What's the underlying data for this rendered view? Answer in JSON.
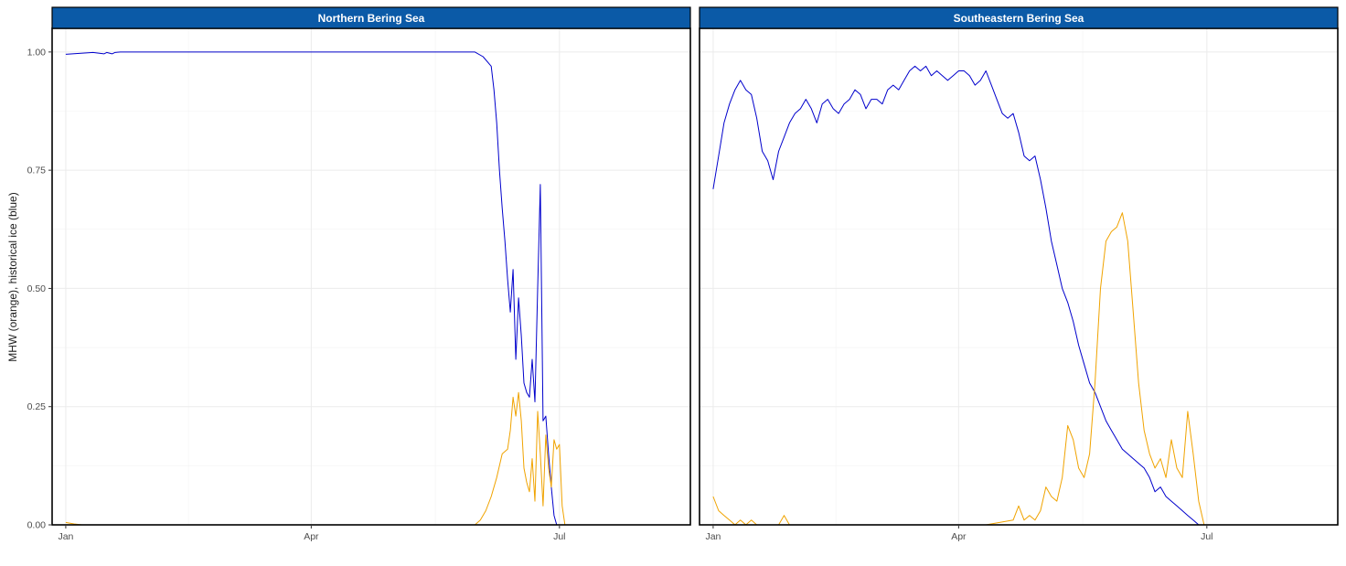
{
  "chart_data": {
    "type": "line",
    "ylabel": "MHW (orange), historical ice (blue)",
    "xlabel": "",
    "ylim": [
      0,
      1.05
    ],
    "yticks": [
      0.0,
      0.25,
      0.5,
      0.75,
      1.0
    ],
    "ytick_labels": [
      "0.00",
      "0.25",
      "0.50",
      "0.75",
      "1.00"
    ],
    "xlim_day": [
      -5,
      229
    ],
    "xticks_day": [
      0,
      90,
      181
    ],
    "xtick_labels": [
      "Jan",
      "Apr",
      "Jul"
    ],
    "grid": true,
    "colors": {
      "strip_fill": "#0b5aa7",
      "ice": "#0000cc",
      "mhw": "#f0a300"
    },
    "panels": [
      {
        "title": "Northern Bering Sea",
        "series": [
          {
            "key": "ice",
            "day": [
              0,
              5,
              10,
              14,
              15,
              17,
              18,
              20,
              25,
              150,
              153,
              156,
              157,
              158,
              159,
              160,
              161,
              162,
              163,
              164,
              165,
              166,
              167,
              168,
              169,
              170,
              171,
              172,
              173,
              174,
              175,
              176,
              177,
              178,
              179,
              180,
              181,
              182,
              183,
              184,
              185,
              186,
              190,
              200
            ],
            "values": [
              0.995,
              0.997,
              0.999,
              0.996,
              0.999,
              0.996,
              0.999,
              1.0,
              1.0,
              1.0,
              0.99,
              0.97,
              0.92,
              0.85,
              0.75,
              0.67,
              0.6,
              0.52,
              0.45,
              0.54,
              0.35,
              0.48,
              0.4,
              0.3,
              0.28,
              0.27,
              0.35,
              0.26,
              0.5,
              0.72,
              0.22,
              0.23,
              0.15,
              0.08,
              0.02,
              0.0,
              0.0,
              0.0,
              0.0,
              0.0,
              0.0,
              0.0,
              0.0,
              0.0
            ]
          },
          {
            "key": "mhw",
            "day": [
              0,
              3,
              6,
              150,
              152,
              154,
              156,
              158,
              160,
              162,
              163,
              164,
              165,
              166,
              167,
              168,
              169,
              170,
              171,
              172,
              173,
              174,
              175,
              176,
              177,
              178,
              179,
              180,
              181,
              182,
              183,
              184,
              185,
              186,
              190,
              200
            ],
            "values": [
              0.005,
              0.002,
              0.0,
              0.0,
              0.01,
              0.03,
              0.06,
              0.1,
              0.15,
              0.16,
              0.2,
              0.27,
              0.23,
              0.28,
              0.22,
              0.12,
              0.09,
              0.07,
              0.14,
              0.05,
              0.24,
              0.15,
              0.04,
              0.19,
              0.12,
              0.08,
              0.18,
              0.16,
              0.17,
              0.04,
              0.0,
              0.0,
              0.0,
              0.0,
              0.0,
              0.0
            ]
          }
        ]
      },
      {
        "title": "Southeastern Bering Sea",
        "series": [
          {
            "key": "ice",
            "day": [
              0,
              2,
              4,
              6,
              8,
              10,
              12,
              14,
              16,
              18,
              20,
              22,
              24,
              26,
              28,
              30,
              32,
              34,
              36,
              38,
              40,
              42,
              44,
              46,
              48,
              50,
              52,
              54,
              56,
              58,
              60,
              62,
              64,
              66,
              68,
              70,
              72,
              74,
              76,
              78,
              80,
              82,
              84,
              86,
              88,
              90,
              92,
              94,
              96,
              98,
              100,
              102,
              104,
              106,
              108,
              110,
              112,
              114,
              116,
              118,
              120,
              122,
              124,
              126,
              128,
              130,
              132,
              134,
              136,
              138,
              140,
              142,
              144,
              146,
              148,
              150,
              152,
              154,
              156,
              158,
              160,
              162,
              164,
              166,
              168,
              170,
              172,
              174,
              176,
              178,
              180,
              182,
              184,
              186,
              190,
              200
            ],
            "values": [
              0.71,
              0.78,
              0.85,
              0.89,
              0.92,
              0.94,
              0.92,
              0.91,
              0.86,
              0.79,
              0.77,
              0.73,
              0.79,
              0.82,
              0.85,
              0.87,
              0.88,
              0.9,
              0.88,
              0.85,
              0.89,
              0.9,
              0.88,
              0.87,
              0.89,
              0.9,
              0.92,
              0.91,
              0.88,
              0.9,
              0.9,
              0.89,
              0.92,
              0.93,
              0.92,
              0.94,
              0.96,
              0.97,
              0.96,
              0.97,
              0.95,
              0.96,
              0.95,
              0.94,
              0.95,
              0.96,
              0.96,
              0.95,
              0.93,
              0.94,
              0.96,
              0.93,
              0.9,
              0.87,
              0.86,
              0.87,
              0.83,
              0.78,
              0.77,
              0.78,
              0.73,
              0.67,
              0.6,
              0.55,
              0.5,
              0.47,
              0.43,
              0.38,
              0.34,
              0.3,
              0.28,
              0.25,
              0.22,
              0.2,
              0.18,
              0.16,
              0.15,
              0.14,
              0.13,
              0.12,
              0.1,
              0.07,
              0.08,
              0.06,
              0.05,
              0.04,
              0.03,
              0.02,
              0.01,
              0.0,
              0.0,
              0.0,
              0.0,
              0.0,
              0.0,
              0.0
            ]
          },
          {
            "key": "mhw",
            "day": [
              0,
              2,
              4,
              6,
              8,
              10,
              12,
              14,
              16,
              18,
              20,
              22,
              24,
              26,
              28,
              30,
              40,
              50,
              60,
              70,
              80,
              90,
              100,
              110,
              112,
              114,
              116,
              118,
              120,
              122,
              124,
              126,
              128,
              130,
              132,
              134,
              136,
              138,
              140,
              142,
              144,
              146,
              148,
              150,
              152,
              154,
              156,
              158,
              160,
              162,
              164,
              166,
              168,
              170,
              172,
              174,
              176,
              178,
              180,
              182,
              184,
              186,
              190,
              200
            ],
            "values": [
              0.06,
              0.03,
              0.02,
              0.01,
              0.0,
              0.01,
              0.0,
              0.01,
              0.0,
              0.0,
              0.0,
              0.0,
              0.0,
              0.02,
              0.0,
              0.0,
              0.0,
              0.0,
              0.0,
              0.0,
              0.0,
              0.0,
              0.0,
              0.01,
              0.04,
              0.01,
              0.02,
              0.01,
              0.03,
              0.08,
              0.06,
              0.05,
              0.1,
              0.21,
              0.18,
              0.12,
              0.1,
              0.15,
              0.3,
              0.5,
              0.6,
              0.62,
              0.63,
              0.66,
              0.6,
              0.45,
              0.3,
              0.2,
              0.15,
              0.12,
              0.14,
              0.1,
              0.18,
              0.12,
              0.1,
              0.24,
              0.15,
              0.05,
              0.0,
              0.0,
              0.0,
              0.0,
              0.0,
              0.0
            ]
          }
        ]
      }
    ]
  }
}
